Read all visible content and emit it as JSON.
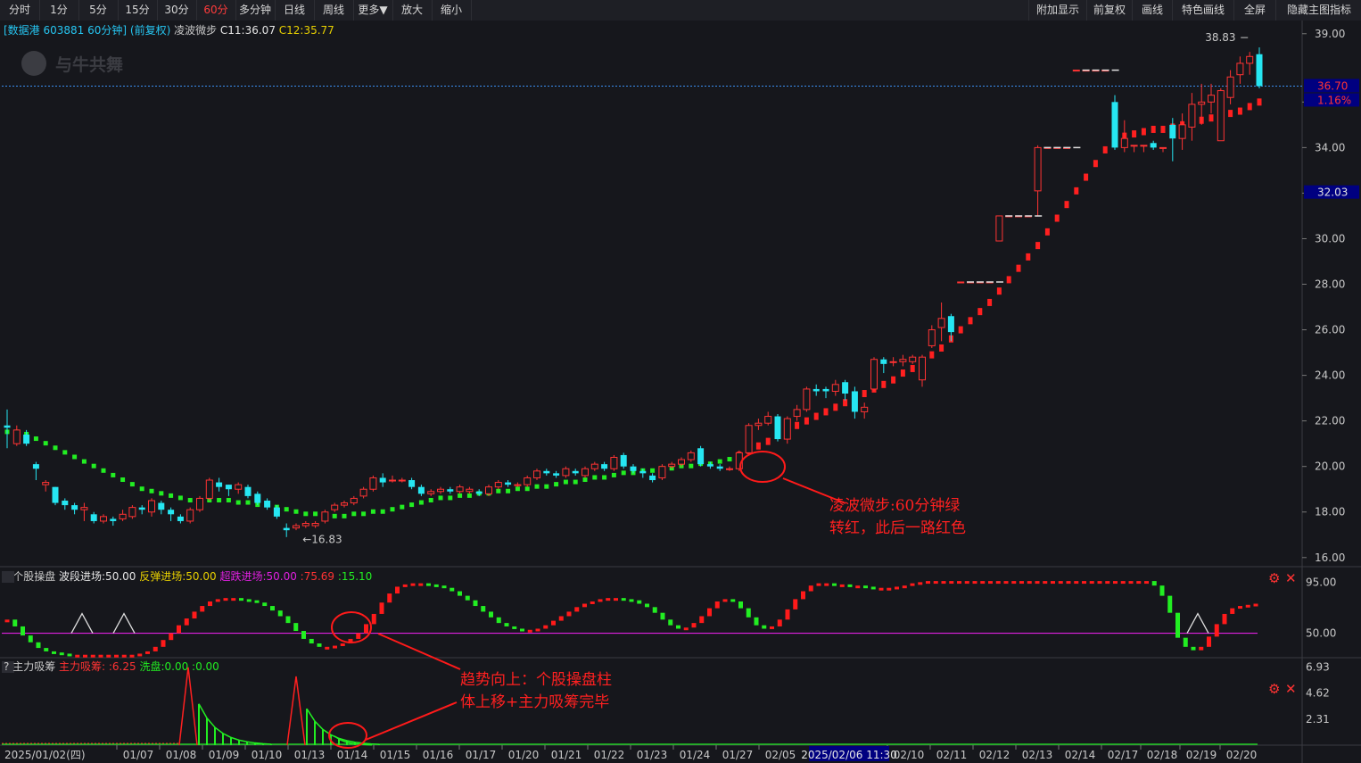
{
  "toolbar": {
    "left": [
      "分时",
      "1分",
      "5分",
      "15分",
      "30分",
      "60分",
      "多分钟",
      "日线",
      "周线",
      "更多▼",
      "放大",
      "缩小"
    ],
    "active": "60分",
    "right": [
      "附加显示",
      "前复权",
      "画线",
      "特色画线",
      "全屏",
      "隐藏主图指标"
    ]
  },
  "main_header": {
    "stock": "[数据港 603881 60分钟]",
    "adj": "(前复权)",
    "indicator": "凌波微步",
    "c1": "C11:36.07",
    "c2": "C12:35.77"
  },
  "watermark": "与牛共舞",
  "sub1_header": {
    "q": "?",
    "name": "个股操盘",
    "v1": "波段进场:50.00",
    "v2": "反弹进场:50.00",
    "v3": "超跌进场:50.00",
    "v4": ":75.69",
    "v5": ":15.10"
  },
  "sub2_header": {
    "q": "?",
    "name": "主力吸筹",
    "v1": "主力吸筹:",
    "v2": ":6.25",
    "v3": "洗盘:0.00",
    "v4": ":0.00"
  },
  "annotations": {
    "a1_line1": "凌波微步:60分钟绿",
    "a1_line2": "转红，此后一路红色",
    "a2_line1": "趋势向上：个股操盘柱",
    "a2_line2": "体上移+主力吸筹完毕"
  },
  "price_labels": {
    "high_note": "38.83",
    "low_note": "16.83",
    "current": "36.70",
    "pct": "1.16%",
    "cross": "32.03"
  },
  "bottom_axis": {
    "first": "2025/01/02(四)",
    "labels": [
      "01/07",
      "01/08",
      "01/09",
      "01/10",
      "01/13",
      "01/14",
      "01/15",
      "01/16",
      "01/17",
      "01/20",
      "01/21",
      "01/22",
      "01/23",
      "01/24",
      "01/27",
      "02/05",
      "02/10",
      "02/11",
      "02/12",
      "02/13",
      "02/14",
      "02/17",
      "02/18",
      "02/19",
      "02/20"
    ],
    "cursor_label": "2025/02/06 11:30"
  },
  "colors": {
    "up": "#ff3333",
    "down": "#26e6f2",
    "green": "#22ee22",
    "magenta": "#e020e0",
    "axis_bg": "#000080"
  },
  "chart_data": [
    {
      "type": "candlestick",
      "title": "数据港 603881 60分钟",
      "y_ticks": [
        16.0,
        18.0,
        20.0,
        22.0,
        24.0,
        26.0,
        28.0,
        30.0,
        32.0,
        34.0,
        36.0,
        38.0,
        39.0
      ],
      "ylim": [
        15.6,
        39.5
      ],
      "y_tick_labels": [
        "16.00",
        "18.00",
        "20.00",
        "22.00",
        "24.00",
        "26.00",
        "28.00",
        "30.00",
        "32.00",
        "34.00",
        "36.00",
        "39.00"
      ],
      "ohlc": [
        [
          21.8,
          21.7,
          22.5,
          20.8
        ],
        [
          21.0,
          21.6,
          21.8,
          20.9
        ],
        [
          21.4,
          21.0,
          21.6,
          20.9
        ],
        [
          20.1,
          19.9,
          20.2,
          19.4
        ],
        [
          19.2,
          19.3,
          19.4,
          18.9
        ],
        [
          19.1,
          18.4,
          19.1,
          18.3
        ],
        [
          18.5,
          18.3,
          18.6,
          18.1
        ],
        [
          18.3,
          18.1,
          18.4,
          17.9
        ],
        [
          18.1,
          18.2,
          18.4,
          17.6
        ],
        [
          17.9,
          17.6,
          18.0,
          17.5
        ],
        [
          17.6,
          17.8,
          17.9,
          17.5
        ],
        [
          17.7,
          17.6,
          17.8,
          17.4
        ],
        [
          17.7,
          17.9,
          18.1,
          17.6
        ],
        [
          17.8,
          18.2,
          18.3,
          17.7
        ],
        [
          18.2,
          18.1,
          18.3,
          17.9
        ],
        [
          18.0,
          18.5,
          18.6,
          17.8
        ],
        [
          18.4,
          18.1,
          18.5,
          17.9
        ],
        [
          18.1,
          17.9,
          18.2,
          17.6
        ],
        [
          17.8,
          17.6,
          17.9,
          17.5
        ],
        [
          17.6,
          18.1,
          18.2,
          17.5
        ],
        [
          18.1,
          18.6,
          18.7,
          18.0
        ],
        [
          18.6,
          19.4,
          19.5,
          18.5
        ],
        [
          19.3,
          19.1,
          19.5,
          18.9
        ],
        [
          19.2,
          19.0,
          19.2,
          18.7
        ],
        [
          19.0,
          19.2,
          19.3,
          18.8
        ],
        [
          19.1,
          18.7,
          19.2,
          18.6
        ],
        [
          18.8,
          18.4,
          18.9,
          18.3
        ],
        [
          18.5,
          18.2,
          18.6,
          18.1
        ],
        [
          18.2,
          17.8,
          18.3,
          17.7
        ],
        [
          17.3,
          17.2,
          17.5,
          16.9
        ],
        [
          17.3,
          17.4,
          17.5,
          17.2
        ],
        [
          17.4,
          17.5,
          17.6,
          17.3
        ],
        [
          17.4,
          17.5,
          17.6,
          17.3
        ],
        [
          17.6,
          18.0,
          18.1,
          17.5
        ],
        [
          18.1,
          18.3,
          18.4,
          18.0
        ],
        [
          18.3,
          18.4,
          18.5,
          18.2
        ],
        [
          18.4,
          18.6,
          18.7,
          18.3
        ],
        [
          18.7,
          19.0,
          19.1,
          18.6
        ],
        [
          19.0,
          19.5,
          19.6,
          18.9
        ],
        [
          19.5,
          19.3,
          19.7,
          19.1
        ],
        [
          19.4,
          19.4,
          19.6,
          19.3
        ],
        [
          19.4,
          19.4,
          19.5,
          19.3
        ],
        [
          19.4,
          19.1,
          19.5,
          19.0
        ],
        [
          19.1,
          18.8,
          19.2,
          18.7
        ],
        [
          18.8,
          18.9,
          19.0,
          18.7
        ],
        [
          18.9,
          19.0,
          19.1,
          18.8
        ],
        [
          19.0,
          18.9,
          19.1,
          18.8
        ],
        [
          18.9,
          19.1,
          19.2,
          18.8
        ],
        [
          18.9,
          19.0,
          19.1,
          18.8
        ],
        [
          18.9,
          18.8,
          19.0,
          18.7
        ],
        [
          18.8,
          19.1,
          19.2,
          18.7
        ],
        [
          19.1,
          19.3,
          19.4,
          19.0
        ],
        [
          19.3,
          19.2,
          19.4,
          19.1
        ],
        [
          19.2,
          19.2,
          19.3,
          19.1
        ],
        [
          19.2,
          19.5,
          19.6,
          19.1
        ],
        [
          19.5,
          19.8,
          19.9,
          19.4
        ],
        [
          19.8,
          19.7,
          19.9,
          19.6
        ],
        [
          19.7,
          19.6,
          19.8,
          19.5
        ],
        [
          19.6,
          19.9,
          20.0,
          19.5
        ],
        [
          19.8,
          19.7,
          19.9,
          19.6
        ],
        [
          19.6,
          19.9,
          20.0,
          19.5
        ],
        [
          19.9,
          20.1,
          20.2,
          19.8
        ],
        [
          20.1,
          19.9,
          20.2,
          19.8
        ],
        [
          19.9,
          20.4,
          20.5,
          19.8
        ],
        [
          20.5,
          20.0,
          20.6,
          19.9
        ],
        [
          20.0,
          19.8,
          20.1,
          19.7
        ],
        [
          19.8,
          19.7,
          19.9,
          19.5
        ],
        [
          19.6,
          19.4,
          19.7,
          19.3
        ],
        [
          19.5,
          20.0,
          20.1,
          19.4
        ],
        [
          20.0,
          20.1,
          20.2,
          19.9
        ],
        [
          20.1,
          20.3,
          20.4,
          20.0
        ],
        [
          20.3,
          20.6,
          20.7,
          20.2
        ],
        [
          20.8,
          20.1,
          20.9,
          20.0
        ],
        [
          20.1,
          20.0,
          20.2,
          19.9
        ],
        [
          20.0,
          19.9,
          20.1,
          19.8
        ],
        [
          19.9,
          19.9,
          20.0,
          19.8
        ],
        [
          19.9,
          20.6,
          20.7,
          19.8
        ],
        [
          20.6,
          21.8,
          21.9,
          20.5
        ],
        [
          21.8,
          21.9,
          22.1,
          21.6
        ],
        [
          21.9,
          22.2,
          22.4,
          21.8
        ],
        [
          22.2,
          21.2,
          22.3,
          21.1
        ],
        [
          21.2,
          22.1,
          22.2,
          21.0
        ],
        [
          22.2,
          22.5,
          22.7,
          22.0
        ],
        [
          22.5,
          23.4,
          23.5,
          22.4
        ],
        [
          23.4,
          23.3,
          23.6,
          23.1
        ],
        [
          23.4,
          23.3,
          23.5,
          23.0
        ],
        [
          23.3,
          23.6,
          23.8,
          23.1
        ],
        [
          23.7,
          23.2,
          23.8,
          22.9
        ],
        [
          23.3,
          22.4,
          23.5,
          22.1
        ],
        [
          22.4,
          22.6,
          22.8,
          22.1
        ],
        [
          23.4,
          24.7,
          24.8,
          23.3
        ],
        [
          24.7,
          24.5,
          24.8,
          24.1
        ],
        [
          24.6,
          24.6,
          24.8,
          24.4
        ],
        [
          24.6,
          24.7,
          24.9,
          24.4
        ],
        [
          24.6,
          24.8,
          24.9,
          24.5
        ],
        [
          23.8,
          24.8,
          24.9,
          23.5
        ],
        [
          25.3,
          26.0,
          26.2,
          25.2
        ],
        [
          26.1,
          26.5,
          27.2,
          25.5
        ],
        [
          26.6,
          25.9,
          26.7,
          25.5
        ],
        [
          28.1,
          28.1,
          28.1,
          28.1
        ],
        [
          28.1,
          28.1,
          28.1,
          28.1
        ],
        [
          28.1,
          28.1,
          28.1,
          28.1
        ],
        [
          28.1,
          28.1,
          28.1,
          28.1
        ],
        [
          29.9,
          31.0,
          31.0,
          29.9
        ],
        [
          31.0,
          31.0,
          31.0,
          31.0
        ],
        [
          31.0,
          31.0,
          31.0,
          31.0
        ],
        [
          31.0,
          31.0,
          31.0,
          31.0
        ],
        [
          32.1,
          34.0,
          34.1,
          31.0
        ],
        [
          34.0,
          34.0,
          34.0,
          34.0
        ],
        [
          34.0,
          34.0,
          34.0,
          34.0
        ],
        [
          34.0,
          34.0,
          34.0,
          34.0
        ],
        [
          37.4,
          37.4,
          37.4,
          37.4
        ],
        [
          37.4,
          37.4,
          37.4,
          37.4
        ],
        [
          37.4,
          37.4,
          37.4,
          37.4
        ],
        [
          37.4,
          37.4,
          37.4,
          37.4
        ],
        [
          36.0,
          34.0,
          36.3,
          33.9
        ],
        [
          34.0,
          34.4,
          35.2,
          33.8
        ],
        [
          34.1,
          34.1,
          34.1,
          33.8
        ],
        [
          34.1,
          34.1,
          34.1,
          33.8
        ],
        [
          34.2,
          34.0,
          34.3,
          33.9
        ],
        [
          34.0,
          34.0,
          34.0,
          33.8
        ],
        [
          35.0,
          34.4,
          35.3,
          33.4
        ],
        [
          34.4,
          35.0,
          35.5,
          33.9
        ],
        [
          34.9,
          35.9,
          36.4,
          34.3
        ],
        [
          35.9,
          36.0,
          36.8,
          35.0
        ],
        [
          36.0,
          36.3,
          36.8,
          35.5
        ],
        [
          34.3,
          36.5,
          36.6,
          34.3
        ],
        [
          36.2,
          37.1,
          37.4,
          35.9
        ],
        [
          37.2,
          37.7,
          38.0,
          36.8
        ],
        [
          37.7,
          38.0,
          38.2,
          37.2
        ],
        [
          38.1,
          36.7,
          38.4,
          36.6
        ]
      ]
    },
    {
      "type": "line",
      "title": "凌波微步",
      "note": "dotted trend line, green while falling, red while rising",
      "values": [
        21.5,
        21.5,
        21.4,
        21.2,
        21.0,
        20.8,
        20.6,
        20.4,
        20.2,
        20.0,
        19.8,
        19.6,
        19.4,
        19.2,
        19.0,
        18.9,
        18.8,
        18.7,
        18.6,
        18.5,
        18.5,
        18.5,
        18.5,
        18.5,
        18.4,
        18.4,
        18.3,
        18.3,
        18.2,
        18.1,
        18.0,
        17.9,
        17.9,
        17.8,
        17.8,
        17.8,
        17.9,
        17.9,
        18.0,
        18.0,
        18.1,
        18.2,
        18.3,
        18.4,
        18.5,
        18.6,
        18.6,
        18.7,
        18.7,
        18.8,
        18.8,
        18.9,
        18.9,
        19.0,
        19.0,
        19.1,
        19.1,
        19.2,
        19.3,
        19.3,
        19.4,
        19.5,
        19.5,
        19.6,
        19.7,
        19.7,
        19.8,
        19.8,
        19.9,
        19.9,
        20.0,
        20.0,
        20.1,
        20.1,
        20.2,
        20.3,
        20.5,
        20.7,
        20.9,
        21.1,
        21.4,
        21.6,
        21.8,
        22.0,
        22.2,
        22.4,
        22.6,
        22.8,
        23.0,
        23.2,
        23.4,
        23.6,
        23.8,
        24.1,
        24.3,
        24.6,
        24.9,
        25.2,
        25.6,
        26.0,
        26.4,
        26.8,
        27.2,
        27.7,
        28.2,
        28.7,
        29.2,
        29.7,
        30.3,
        30.9,
        31.5,
        32.1,
        32.7,
        33.3,
        33.9,
        34.5,
        34.5,
        34.6,
        34.7,
        34.8,
        34.8,
        34.9,
        35.0,
        35.1,
        35.2,
        35.3,
        35.4,
        35.5,
        35.6,
        35.8,
        36.0
      ],
      "red_from_index": 76
    },
    {
      "type": "line",
      "title": "个股操盘",
      "y_ticks": [
        50.0,
        95.0
      ],
      "ylim": [
        30,
        100
      ],
      "values": [
        62,
        56,
        48,
        42,
        37,
        34,
        33,
        32,
        31,
        31,
        31,
        31,
        31,
        31,
        31,
        31,
        31,
        32,
        34,
        38,
        44,
        50,
        57,
        63,
        69,
        74,
        78,
        80,
        81,
        81,
        80,
        79,
        77,
        74,
        70,
        65,
        59,
        52,
        45,
        41,
        38,
        38,
        39,
        41,
        45,
        50,
        58,
        67,
        77,
        85,
        91,
        93,
        94,
        94,
        93,
        92,
        90,
        87,
        83,
        79,
        74,
        69,
        64,
        59,
        56,
        54,
        53,
        53,
        54,
        57,
        61,
        65,
        69,
        73,
        76,
        78,
        80,
        81,
        81,
        80,
        79,
        76,
        73,
        68,
        62,
        57,
        54,
        55,
        59,
        65,
        72,
        78,
        80,
        78,
        72,
        64,
        57,
        54,
        56,
        62,
        71,
        80,
        87,
        92,
        94,
        94,
        93,
        93,
        92,
        92,
        91,
        90,
        90,
        90,
        91,
        92,
        94,
        95,
        96,
        96,
        96,
        96,
        96,
        96,
        96,
        96,
        96,
        96,
        96,
        96,
        96,
        96,
        96,
        96,
        96,
        96,
        96,
        96,
        96,
        96,
        96,
        96,
        96,
        96,
        96,
        96,
        96,
        92,
        83,
        68,
        46,
        38,
        35,
        38,
        47,
        58,
        67,
        72,
        74,
        75,
        76
      ],
      "line_50": 50,
      "triangles_at_index": [
        9,
        14,
        144
      ]
    },
    {
      "type": "bar",
      "title": "主力吸筹",
      "y_ticks": [
        2.31,
        4.62,
        6.93
      ],
      "ylim": [
        0,
        7.6
      ],
      "spikes": [
        {
          "i": 22,
          "v": 6.9,
          "color": "red"
        },
        {
          "i": 38,
          "v": 6.1,
          "color": "red"
        }
      ],
      "decay_after": [
        22,
        38
      ]
    }
  ]
}
